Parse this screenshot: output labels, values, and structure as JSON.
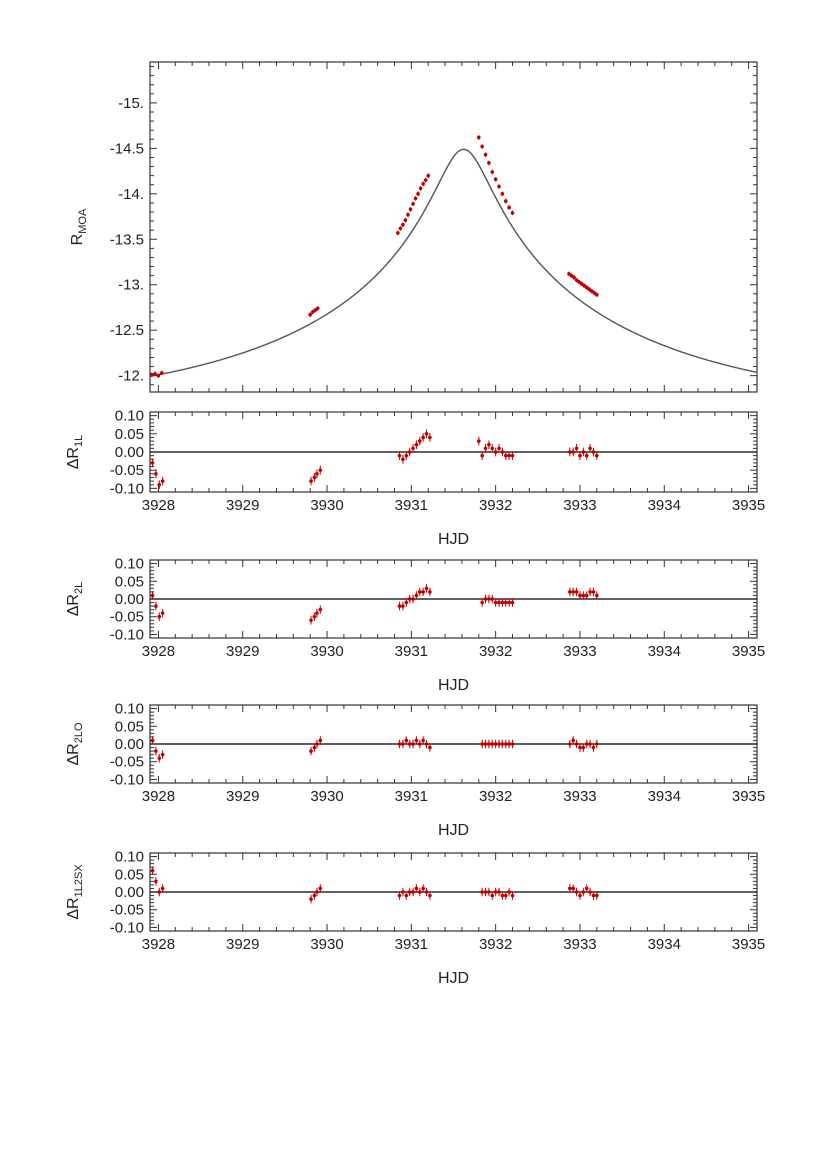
{
  "chart_data": [
    {
      "type": "line",
      "ylabel": "R",
      "ylabel_sub": "MOA",
      "xlim": [
        3927.9,
        3935.1
      ],
      "ylim": [
        -11.82,
        -15.45
      ],
      "y_inverted": true,
      "yticks": [
        -12,
        -12.5,
        -13,
        -13.5,
        -14,
        -14.5,
        -15
      ],
      "ytick_labels": [
        "-12.",
        "-12.5",
        "-13.",
        "-13.5",
        "-14.",
        "-14.5",
        "-15."
      ],
      "model_color": "#555555",
      "point_color": "#c00000",
      "series": [
        {
          "values_x": [
            3927.92,
            3927.96,
            3928.0,
            3928.04,
            3929.8,
            3929.83,
            3929.86,
            3929.89,
            3930.84,
            3930.87,
            3930.9,
            3930.93,
            3930.96,
            3930.99,
            3931.02,
            3931.05,
            3931.08,
            3931.11,
            3931.14,
            3931.17,
            3931.2,
            3931.8,
            3931.84,
            3931.88,
            3931.92,
            3931.96,
            3932.0,
            3932.04,
            3932.08,
            3932.12,
            3932.16,
            3932.2,
            3932.87,
            3932.9,
            3932.93,
            3932.96,
            3932.99,
            3933.02,
            3933.05,
            3933.08,
            3933.11,
            3933.14,
            3933.17,
            3933.2
          ],
          "values_y": [
            -12.01,
            -12.02,
            -12.0,
            -12.03,
            -12.67,
            -12.7,
            -12.72,
            -12.74,
            -13.57,
            -13.62,
            -13.66,
            -13.71,
            -13.77,
            -13.83,
            -13.89,
            -13.95,
            -14.0,
            -14.06,
            -14.11,
            -14.15,
            -14.2,
            -14.62,
            -14.52,
            -14.43,
            -14.34,
            -14.24,
            -14.16,
            -14.08,
            -14.0,
            -13.92,
            -13.85,
            -13.79,
            -13.12,
            -13.1,
            -13.08,
            -13.05,
            -13.03,
            -13.01,
            -12.99,
            -12.97,
            -12.95,
            -12.93,
            -12.91,
            -12.89
          ]
        }
      ]
    },
    {
      "type": "line",
      "ylabel": "ΔR",
      "ylabel_sub": "1L",
      "xlabel": "HJD",
      "xlim": [
        3927.9,
        3935.1
      ],
      "ylim": [
        -0.11,
        0.11
      ],
      "yticks": [
        0.1,
        0.05,
        0.0,
        -0.05,
        -0.1
      ],
      "ytick_labels": [
        "0.10",
        "0.05",
        "0.00",
        "-0.05",
        "-0.10"
      ],
      "xticks": [
        3928,
        3929,
        3930,
        3931,
        3932,
        3933,
        3934,
        3935
      ],
      "xtick_labels": [
        "3928",
        "3929",
        "3930",
        "3931",
        "3932",
        "3933",
        "3934",
        "3935"
      ],
      "series": [
        {
          "values_x": [
            3927.93,
            3927.97,
            3928.01,
            3928.05,
            3929.81,
            3929.85,
            3929.88,
            3929.92,
            3930.86,
            3930.9,
            3930.94,
            3930.98,
            3931.02,
            3931.06,
            3931.1,
            3931.14,
            3931.18,
            3931.22,
            3931.8,
            3931.84,
            3931.88,
            3931.92,
            3931.96,
            3932.0,
            3932.04,
            3932.08,
            3932.12,
            3932.16,
            3932.2,
            3932.88,
            3932.92,
            3932.96,
            3933.0,
            3933.04,
            3933.08,
            3933.12,
            3933.16,
            3933.2
          ],
          "values_y": [
            -0.03,
            -0.06,
            -0.09,
            -0.08,
            -0.08,
            -0.07,
            -0.06,
            -0.05,
            -0.01,
            -0.02,
            -0.01,
            0.0,
            0.01,
            0.02,
            0.03,
            0.04,
            0.05,
            0.04,
            0.03,
            -0.01,
            0.01,
            0.02,
            0.01,
            0.0,
            0.01,
            0.0,
            -0.01,
            -0.01,
            -0.01,
            0.0,
            0.0,
            0.01,
            -0.01,
            0.0,
            -0.01,
            0.01,
            0.0,
            -0.01
          ]
        }
      ]
    },
    {
      "type": "line",
      "ylabel": "ΔR",
      "ylabel_sub": "2L",
      "xlabel": "HJD",
      "xlim": [
        3927.9,
        3935.1
      ],
      "ylim": [
        -0.11,
        0.11
      ],
      "yticks": [
        0.1,
        0.05,
        0.0,
        -0.05,
        -0.1
      ],
      "ytick_labels": [
        "0.10",
        "0.05",
        "0.00",
        "-0.05",
        "-0.10"
      ],
      "xticks": [
        3928,
        3929,
        3930,
        3931,
        3932,
        3933,
        3934,
        3935
      ],
      "xtick_labels": [
        "3928",
        "3929",
        "3930",
        "3931",
        "3932",
        "3933",
        "3934",
        "3935"
      ],
      "series": [
        {
          "values_x": [
            3927.93,
            3927.97,
            3928.01,
            3928.05,
            3929.81,
            3929.85,
            3929.88,
            3929.92,
            3930.86,
            3930.9,
            3930.94,
            3930.98,
            3931.02,
            3931.06,
            3931.1,
            3931.14,
            3931.18,
            3931.22,
            3931.84,
            3931.88,
            3931.92,
            3931.96,
            3932.0,
            3932.04,
            3932.08,
            3932.12,
            3932.16,
            3932.2,
            3932.88,
            3932.92,
            3932.96,
            3933.0,
            3933.04,
            3933.08,
            3933.12,
            3933.16,
            3933.2
          ],
          "values_y": [
            0.01,
            -0.02,
            -0.05,
            -0.04,
            -0.06,
            -0.05,
            -0.04,
            -0.03,
            -0.02,
            -0.02,
            -0.01,
            0.0,
            0.0,
            0.01,
            0.02,
            0.02,
            0.03,
            0.02,
            -0.01,
            0.0,
            0.0,
            0.0,
            -0.01,
            -0.01,
            -0.01,
            -0.01,
            -0.01,
            -0.01,
            0.02,
            0.02,
            0.02,
            0.01,
            0.01,
            0.01,
            0.02,
            0.02,
            0.01
          ]
        }
      ]
    },
    {
      "type": "line",
      "ylabel": "ΔR",
      "ylabel_sub": "2LO",
      "xlabel": "HJD",
      "xlim": [
        3927.9,
        3935.1
      ],
      "ylim": [
        -0.11,
        0.11
      ],
      "yticks": [
        0.1,
        0.05,
        0.0,
        -0.05,
        -0.1
      ],
      "ytick_labels": [
        "0.10",
        "0.05",
        "0.00",
        "-0.05",
        "-0.10"
      ],
      "xticks": [
        3928,
        3929,
        3930,
        3931,
        3932,
        3933,
        3934,
        3935
      ],
      "xtick_labels": [
        "3928",
        "3929",
        "3930",
        "3931",
        "3932",
        "3933",
        "3934",
        "3935"
      ],
      "series": [
        {
          "values_x": [
            3927.93,
            3927.97,
            3928.01,
            3928.05,
            3929.81,
            3929.85,
            3929.88,
            3929.92,
            3930.86,
            3930.9,
            3930.94,
            3930.98,
            3931.02,
            3931.06,
            3931.1,
            3931.14,
            3931.18,
            3931.22,
            3931.84,
            3931.88,
            3931.92,
            3931.96,
            3932.0,
            3932.04,
            3932.08,
            3932.12,
            3932.16,
            3932.2,
            3932.88,
            3932.92,
            3932.96,
            3933.0,
            3933.04,
            3933.08,
            3933.12,
            3933.16,
            3933.2
          ],
          "values_y": [
            0.01,
            -0.02,
            -0.04,
            -0.03,
            -0.02,
            -0.01,
            0.0,
            0.01,
            0.0,
            0.0,
            0.01,
            0.0,
            0.0,
            0.01,
            0.0,
            0.01,
            0.0,
            -0.01,
            0.0,
            0.0,
            0.0,
            0.0,
            0.0,
            0.0,
            0.0,
            0.0,
            0.0,
            0.0,
            0.0,
            0.01,
            0.0,
            -0.01,
            -0.01,
            0.0,
            0.0,
            -0.01,
            0.0
          ]
        }
      ]
    },
    {
      "type": "line",
      "ylabel": "ΔR",
      "ylabel_sub": "1L2SX",
      "xlabel": "HJD",
      "xlim": [
        3927.9,
        3935.1
      ],
      "ylim": [
        -0.11,
        0.11
      ],
      "yticks": [
        0.1,
        0.05,
        0.0,
        -0.05,
        -0.1
      ],
      "ytick_labels": [
        "0.10",
        "0.05",
        "0.00",
        "-0.05",
        "-0.10"
      ],
      "xticks": [
        3928,
        3929,
        3930,
        3931,
        3932,
        3933,
        3934,
        3935
      ],
      "xtick_labels": [
        "3928",
        "3929",
        "3930",
        "3931",
        "3932",
        "3933",
        "3934",
        "3935"
      ],
      "series": [
        {
          "values_x": [
            3927.93,
            3927.97,
            3928.01,
            3928.05,
            3929.81,
            3929.85,
            3929.88,
            3929.92,
            3930.86,
            3930.9,
            3930.94,
            3930.98,
            3931.02,
            3931.06,
            3931.1,
            3931.14,
            3931.18,
            3931.22,
            3931.84,
            3931.88,
            3931.92,
            3931.96,
            3932.0,
            3932.04,
            3932.08,
            3932.12,
            3932.16,
            3932.2,
            3932.88,
            3932.92,
            3932.96,
            3933.0,
            3933.04,
            3933.08,
            3933.12,
            3933.16,
            3933.2
          ],
          "values_y": [
            0.06,
            0.03,
            0.0,
            0.01,
            -0.02,
            -0.01,
            0.0,
            0.01,
            -0.01,
            0.0,
            -0.01,
            0.0,
            0.0,
            0.01,
            0.0,
            0.01,
            0.0,
            -0.01,
            0.0,
            0.0,
            0.0,
            -0.01,
            0.0,
            0.0,
            -0.01,
            -0.01,
            0.0,
            -0.01,
            0.01,
            0.01,
            0.0,
            -0.01,
            0.0,
            0.01,
            0.0,
            -0.01,
            -0.01
          ]
        }
      ]
    }
  ]
}
